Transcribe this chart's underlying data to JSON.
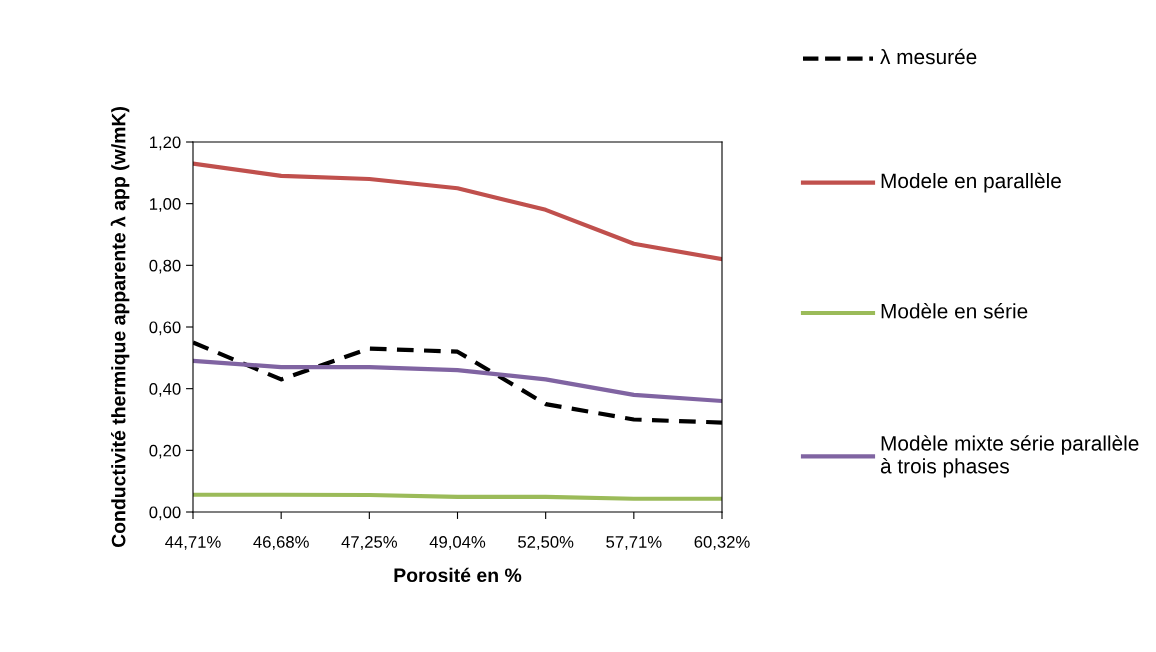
{
  "chart_data": {
    "type": "line",
    "xlabel": "Porosité en %",
    "ylabel": "Conductivité thermique apparente λ app (w/mK)",
    "categories": [
      "44,71%",
      "46,68%",
      "47,25%",
      "49,04%",
      "52,50%",
      "57,71%",
      "60,32%"
    ],
    "series": [
      {
        "name": "λ mesurée",
        "color": "#000000",
        "line_style": "dashed",
        "values": [
          0.55,
          0.43,
          0.53,
          0.52,
          0.35,
          0.3,
          0.29
        ]
      },
      {
        "name": "Modele en parallèle",
        "color": "#c0504d",
        "values": [
          1.13,
          1.09,
          1.08,
          1.05,
          0.98,
          0.87,
          0.82
        ]
      },
      {
        "name": "Modèle en série",
        "color": "#9bbb59",
        "values": [
          0.056,
          0.056,
          0.055,
          0.049,
          0.049,
          0.043,
          0.043
        ]
      },
      {
        "name": "Modèle mixte série parallèle  à trois phases",
        "color": "#8064a2",
        "values": [
          0.49,
          0.47,
          0.47,
          0.46,
          0.43,
          0.38,
          0.36
        ]
      }
    ],
    "ylim": [
      0,
      1.2
    ],
    "yticks": [
      {
        "value": 0,
        "label": "0,00"
      },
      {
        "value": 0.2,
        "label": "0,20"
      },
      {
        "value": 0.4,
        "label": "0,40"
      },
      {
        "value": 0.6,
        "label": "0,60"
      },
      {
        "value": 0.8,
        "label": "0,80"
      },
      {
        "value": 1.0,
        "label": "1,00"
      },
      {
        "value": 1.2,
        "label": "1,20"
      }
    ],
    "grid": false,
    "legend": "right",
    "marker": "none"
  }
}
